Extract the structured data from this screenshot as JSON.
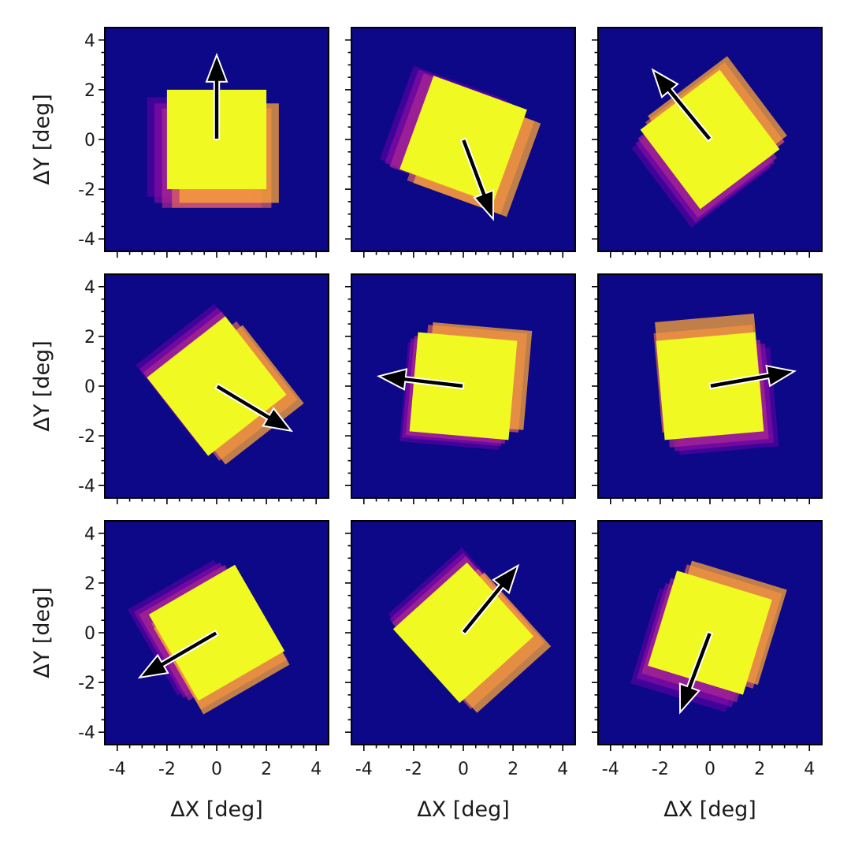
{
  "chart_data": {
    "type": "heatmap",
    "layout": "3x3 grid of panels, shared axes",
    "xlabel": "ΔX [deg]",
    "ylabel": "ΔY [deg]",
    "xlim": [
      -4.5,
      4.5
    ],
    "ylim": [
      -4.5,
      4.5
    ],
    "xticks": [
      -4,
      -2,
      0,
      2,
      4
    ],
    "yticks": [
      -4,
      -2,
      0,
      2,
      4
    ],
    "xtick_labels": [
      "-4",
      "-2",
      "0",
      "2",
      "4"
    ],
    "ytick_labels": [
      "-4",
      "-2",
      "0",
      "2",
      "4"
    ],
    "minor_tick_step": 0.5,
    "grid": false,
    "colormap": "plasma",
    "colors": {
      "background": "#0d0887",
      "core": "#f0f921",
      "arrow_fill": "#000000",
      "arrow_edge": "#ffffff"
    },
    "square_half_width_deg": 2.0,
    "panels": [
      {
        "row": 0,
        "col": 0,
        "rotation_deg": 0,
        "arrow": {
          "dx": 0.0,
          "dy": 3.4
        },
        "layers": [
          {
            "dx": -0.8,
            "dy": -0.3
          },
          {
            "dx": -0.5,
            "dy": -0.55
          },
          {
            "dx": -0.2,
            "dy": -0.75
          },
          {
            "dx": 0.2,
            "dy": -0.75
          },
          {
            "dx": 0.5,
            "dy": -0.55
          }
        ]
      },
      {
        "row": 0,
        "col": 1,
        "rotation_deg": -20,
        "arrow": {
          "dx": 1.2,
          "dy": -3.2
        },
        "layers": [
          {
            "dx": -0.8,
            "dy": 0.4
          },
          {
            "dx": -0.6,
            "dy": 0.25
          },
          {
            "dx": -0.4,
            "dy": 0.1
          },
          {
            "dx": 0.3,
            "dy": -0.45
          },
          {
            "dx": 0.55,
            "dy": -0.55
          }
        ]
      },
      {
        "row": 0,
        "col": 2,
        "rotation_deg": 37,
        "arrow": {
          "dx": -2.3,
          "dy": 2.8
        },
        "layers": [
          {
            "dx": -0.35,
            "dy": -0.75
          },
          {
            "dx": -0.2,
            "dy": -0.55
          },
          {
            "dx": -0.1,
            "dy": -0.35
          },
          {
            "dx": 0.2,
            "dy": 0.3
          },
          {
            "dx": 0.3,
            "dy": 0.55
          }
        ]
      },
      {
        "row": 1,
        "col": 0,
        "rotation_deg": 38,
        "arrow": {
          "dx": 3.0,
          "dy": -1.8
        },
        "layers": [
          {
            "dx": -0.45,
            "dy": 0.5
          },
          {
            "dx": -0.3,
            "dy": 0.35
          },
          {
            "dx": -0.15,
            "dy": 0.2
          },
          {
            "dx": 0.45,
            "dy": -0.2
          },
          {
            "dx": 0.7,
            "dy": -0.35
          }
        ]
      },
      {
        "row": 1,
        "col": 1,
        "rotation_deg": -5,
        "arrow": {
          "dx": -3.4,
          "dy": 0.4
        },
        "layers": [
          {
            "dx": -0.4,
            "dy": -0.4
          },
          {
            "dx": -0.3,
            "dy": -0.25
          },
          {
            "dx": -0.15,
            "dy": -0.15
          },
          {
            "dx": 0.4,
            "dy": 0.3
          },
          {
            "dx": 0.6,
            "dy": 0.4
          }
        ]
      },
      {
        "row": 1,
        "col": 2,
        "rotation_deg": 5,
        "arrow": {
          "dx": 3.4,
          "dy": 0.6
        },
        "layers": [
          {
            "dx": 0.6,
            "dy": -0.6
          },
          {
            "dx": 0.4,
            "dy": -0.45
          },
          {
            "dx": 0.2,
            "dy": -0.3
          },
          {
            "dx": -0.1,
            "dy": 0.3
          },
          {
            "dx": -0.05,
            "dy": 0.75
          }
        ]
      },
      {
        "row": 2,
        "col": 0,
        "rotation_deg": 30,
        "arrow": {
          "dx": -3.1,
          "dy": -1.8
        },
        "layers": [
          {
            "dx": -0.85,
            "dy": 0.2
          },
          {
            "dx": -0.6,
            "dy": 0.1
          },
          {
            "dx": -0.4,
            "dy": 0.0
          },
          {
            "dx": 0.1,
            "dy": -0.35
          },
          {
            "dx": 0.2,
            "dy": -0.55
          }
        ]
      },
      {
        "row": 2,
        "col": 1,
        "rotation_deg": 42,
        "arrow": {
          "dx": 2.2,
          "dy": 2.7
        },
        "layers": [
          {
            "dx": -0.2,
            "dy": 0.6
          },
          {
            "dx": -0.15,
            "dy": 0.4
          },
          {
            "dx": -0.05,
            "dy": 0.25
          },
          {
            "dx": 0.45,
            "dy": -0.25
          },
          {
            "dx": 0.7,
            "dy": -0.4
          }
        ]
      },
      {
        "row": 2,
        "col": 2,
        "rotation_deg": -17,
        "arrow": {
          "dx": -1.2,
          "dy": -3.2
        },
        "layers": [
          {
            "dx": -0.7,
            "dy": -0.7
          },
          {
            "dx": -0.45,
            "dy": -0.5
          },
          {
            "dx": -0.25,
            "dy": -0.3
          },
          {
            "dx": 0.4,
            "dy": 0.25
          },
          {
            "dx": 0.6,
            "dy": 0.4
          }
        ]
      }
    ]
  }
}
